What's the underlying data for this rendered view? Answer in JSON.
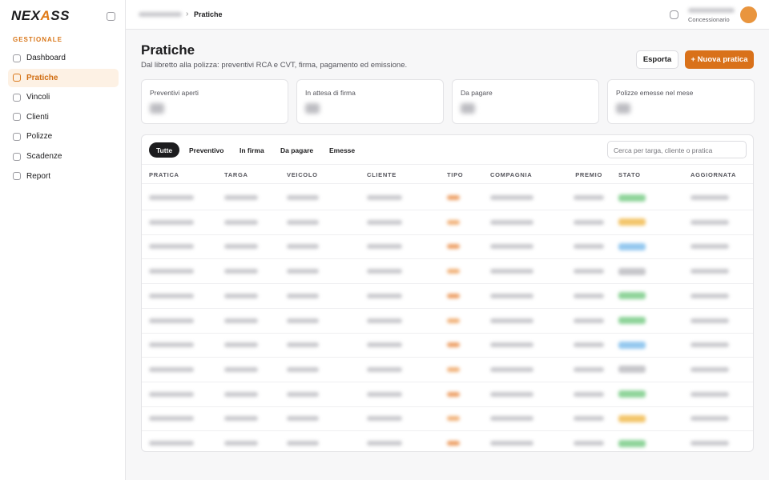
{
  "sidebar": {
    "brand": {
      "pre": "NEX",
      "accent": "A",
      "post": "SS"
    },
    "section": "GESTIONALE",
    "nav": [
      "Dashboard",
      "Pratiche",
      "Vincoli",
      "Clienti",
      "Polizze",
      "Scadenze",
      "Report"
    ]
  },
  "topbar": {
    "breadcrumb_current": "Pratiche",
    "user_role": "Concessionario"
  },
  "header": {
    "title": "Pratiche",
    "subtitle": "Dal libretto alla polizza: preventivi RCA e CVT, firma, pagamento ed emissione.",
    "buttons": [
      "Esporta",
      "+ Nuova pratica"
    ]
  },
  "stats": [
    "Preventivi aperti",
    "In attesa di firma",
    "Da pagare",
    "Polizze emesse nel mese"
  ],
  "tabs": [
    "Tutte",
    "Preventivo",
    "In firma",
    "Da pagare",
    "Emesse"
  ],
  "search_placeholder": "Cerca per targa, cliente o pratica",
  "table": {
    "columns": [
      "PRATICA",
      "TARGA",
      "VEICOLO",
      "CLIENTE",
      "TIPO",
      "COMPAGNIA",
      "PREMIO",
      "STATO",
      "AGGIORNATA"
    ]
  }
}
